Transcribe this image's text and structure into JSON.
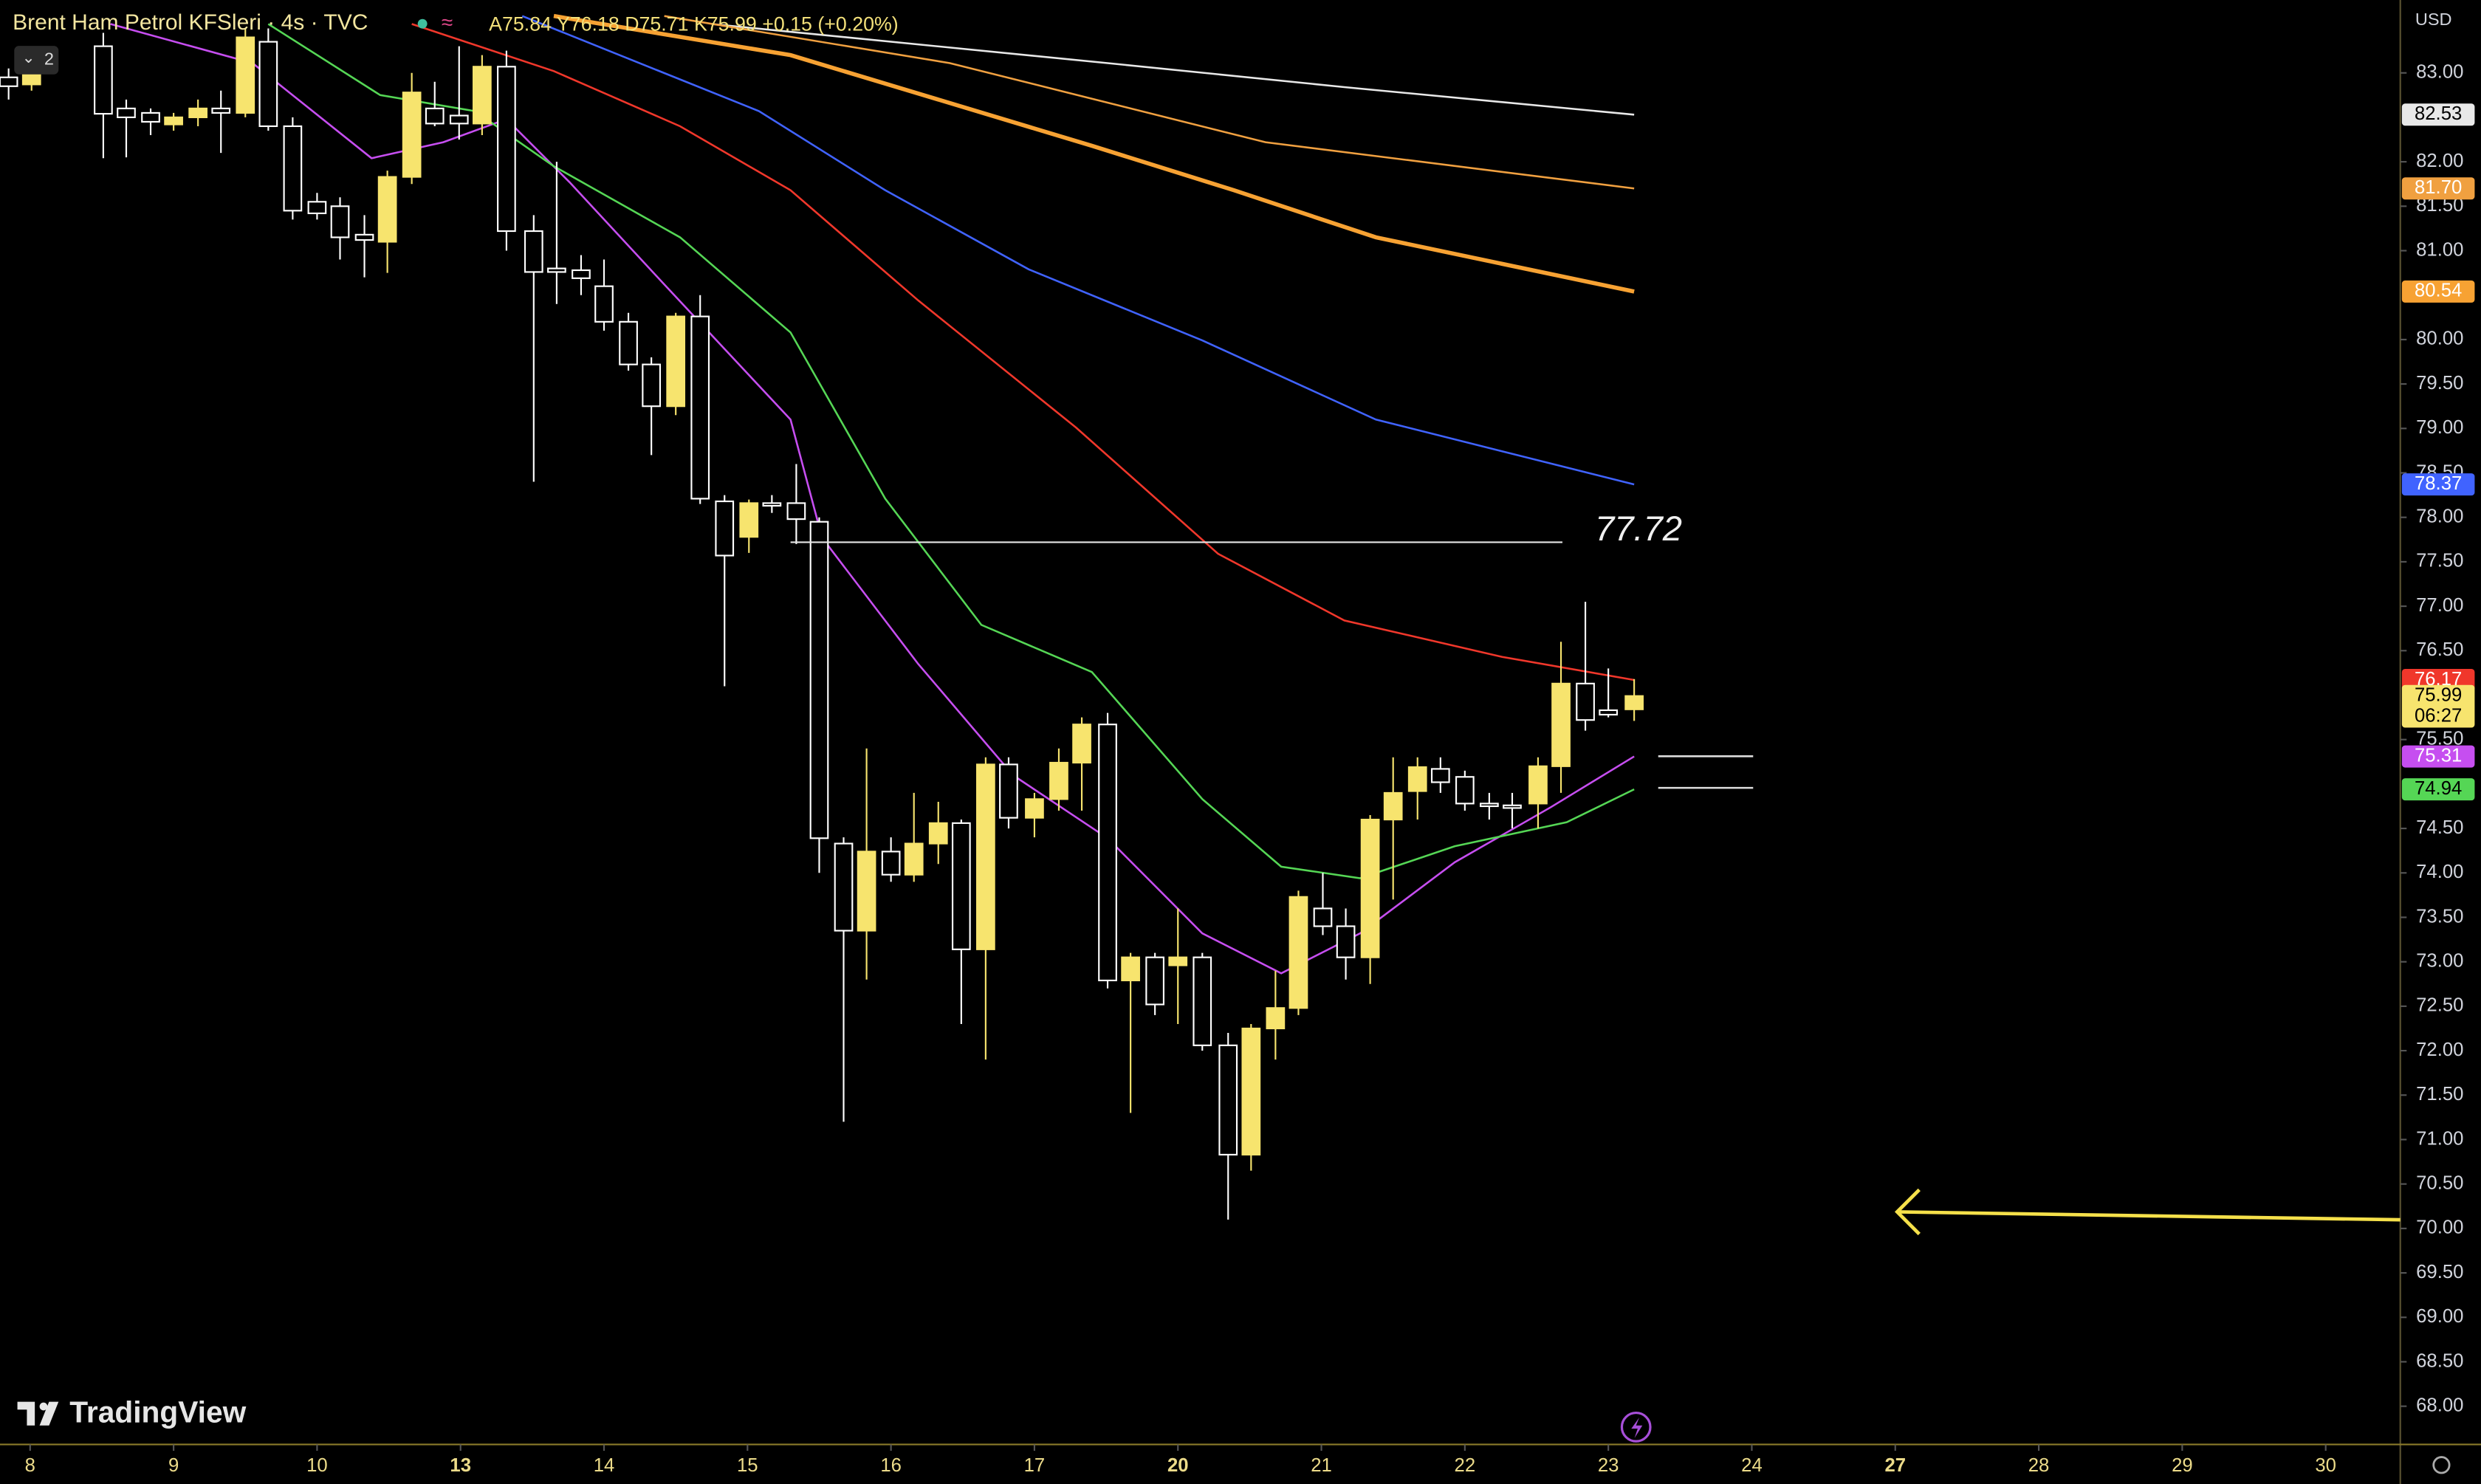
{
  "chart_data": {
    "type": "candlestick",
    "title": "Brent Ham Petrol KFSleri · 4s · TVC",
    "ohlc_legend": "A75.84 Y76.18 D75.71 K75.99 +0.15 (+0.20%)",
    "currency": "USD",
    "badge": "2",
    "watermark": "TradingView",
    "grid": false,
    "up_color": "#f7e46e",
    "down_color": "#ffffff",
    "x": [
      -0.15,
      0.01,
      0.51,
      0.67,
      0.84,
      1.0,
      1.17,
      1.33,
      1.5,
      1.66,
      1.83,
      2.0,
      2.16,
      2.33,
      2.49,
      2.66,
      2.82,
      2.99,
      3.15,
      3.32,
      3.51,
      3.67,
      3.84,
      4.0,
      4.17,
      4.33,
      4.5,
      4.67,
      4.84,
      5.01,
      5.17,
      5.34,
      5.5,
      5.67,
      5.83,
      6.0,
      6.16,
      6.33,
      6.49,
      6.66,
      6.82,
      7.0,
      7.17,
      7.33,
      7.51,
      7.67,
      7.84,
      8.0,
      8.17,
      8.35,
      8.51,
      8.68,
      8.84,
      9.01,
      9.17,
      9.34,
      9.5,
      9.67,
      9.83,
      10.0,
      10.17,
      10.33,
      10.51,
      10.67,
      10.84,
      11.0,
      11.18
    ],
    "open": [
      82.95,
      82.87,
      83.3,
      82.6,
      82.55,
      82.42,
      82.5,
      82.6,
      82.55,
      83.35,
      82.4,
      81.55,
      81.5,
      81.18,
      81.1,
      81.83,
      82.6,
      82.52,
      82.43,
      83.07,
      81.22,
      80.8,
      80.78,
      80.6,
      80.2,
      79.72,
      79.25,
      80.26,
      78.18,
      77.78,
      78.16,
      78.16,
      77.95,
      74.33,
      73.35,
      74.24,
      73.98,
      74.33,
      74.56,
      73.14,
      75.22,
      74.62,
      74.83,
      75.24,
      75.67,
      72.79,
      73.05,
      72.96,
      73.05,
      72.06,
      70.83,
      72.25,
      72.48,
      73.6,
      73.4,
      73.05,
      74.6,
      74.92,
      75.17,
      75.08,
      74.78,
      74.76,
      74.78,
      75.2,
      76.13,
      75.83,
      75.84
    ],
    "high": [
      83.05,
      83.3,
      83.45,
      82.7,
      82.6,
      82.55,
      82.7,
      82.8,
      83.5,
      83.5,
      82.5,
      81.65,
      81.6,
      81.4,
      81.9,
      83.0,
      82.9,
      83.3,
      83.2,
      83.25,
      81.4,
      82.0,
      80.95,
      80.9,
      80.3,
      79.8,
      80.3,
      80.5,
      78.25,
      78.2,
      78.25,
      78.6,
      78.0,
      74.4,
      75.4,
      74.4,
      74.9,
      74.8,
      74.6,
      75.3,
      75.3,
      74.9,
      75.4,
      75.75,
      75.8,
      73.1,
      73.1,
      73.6,
      73.1,
      72.2,
      72.3,
      72.9,
      73.8,
      74.0,
      73.6,
      74.65,
      75.3,
      75.3,
      75.3,
      75.15,
      74.9,
      74.9,
      75.3,
      76.6,
      77.05,
      76.3,
      76.18
    ],
    "low": [
      82.7,
      82.8,
      82.04,
      82.05,
      82.3,
      82.35,
      82.4,
      82.1,
      82.5,
      82.35,
      81.35,
      81.35,
      80.9,
      80.7,
      80.75,
      81.75,
      82.4,
      82.25,
      82.3,
      81.0,
      78.4,
      80.4,
      80.5,
      80.1,
      79.65,
      78.7,
      79.15,
      78.15,
      76.1,
      77.6,
      78.05,
      77.7,
      74.0,
      71.2,
      72.8,
      73.9,
      73.9,
      74.1,
      72.3,
      71.9,
      74.5,
      74.4,
      74.7,
      74.7,
      72.7,
      71.3,
      72.4,
      72.3,
      72.0,
      70.1,
      70.65,
      71.9,
      72.4,
      73.3,
      72.8,
      72.75,
      73.7,
      74.6,
      74.9,
      74.7,
      74.6,
      74.5,
      74.5,
      74.9,
      75.6,
      75.75,
      75.71
    ],
    "close": [
      82.85,
      83.04,
      82.54,
      82.5,
      82.45,
      82.5,
      82.6,
      82.55,
      83.4,
      82.4,
      81.45,
      81.42,
      81.15,
      81.12,
      81.83,
      82.78,
      82.43,
      82.43,
      83.07,
      81.22,
      80.76,
      80.76,
      80.69,
      80.2,
      79.72,
      79.25,
      80.26,
      78.21,
      77.57,
      78.16,
      78.13,
      77.98,
      74.39,
      73.35,
      74.24,
      73.98,
      74.33,
      74.56,
      73.14,
      75.22,
      74.62,
      74.83,
      75.24,
      75.67,
      72.79,
      73.05,
      72.52,
      73.05,
      72.06,
      70.83,
      72.25,
      72.48,
      73.73,
      73.4,
      73.05,
      74.6,
      74.9,
      75.19,
      75.02,
      74.78,
      74.75,
      74.73,
      75.2,
      76.13,
      75.72,
      75.78,
      75.99
    ],
    "lines": [
      {
        "color": "#e8e8e8",
        "width": 1.2,
        "label": "82.53",
        "x": [
          4.75,
          7.51,
          9.16,
          11.18
        ],
        "values": [
          83.55,
          83.11,
          82.84,
          82.53
        ]
      },
      {
        "color": "#f0a040",
        "width": 1.2,
        "label": "81.70",
        "x": [
          4.42,
          6.41,
          8.61,
          11.18
        ],
        "values": [
          83.64,
          83.11,
          82.22,
          81.7
        ]
      },
      {
        "color": "#f7a233",
        "width": 2.6,
        "label": "80.54",
        "x": [
          3.65,
          5.3,
          7.4,
          8.39,
          9.38,
          11.18
        ],
        "values": [
          83.64,
          83.2,
          82.18,
          81.68,
          81.15,
          80.54
        ]
      },
      {
        "color": "#4063ff",
        "width": 1.2,
        "label": "78.37",
        "x": [
          3.43,
          5.08,
          5.96,
          6.96,
          8.17,
          9.38,
          11.18
        ],
        "values": [
          83.64,
          82.57,
          81.68,
          80.79,
          79.99,
          79.1,
          78.37
        ]
      },
      {
        "color": "#f0372b",
        "width": 1.2,
        "label": "76.17",
        "x": [
          2.66,
          3.65,
          4.53,
          5.3,
          6.19,
          7.29,
          8.28,
          9.16,
          10.26,
          11.18
        ],
        "values": [
          83.55,
          83.02,
          82.4,
          81.68,
          80.44,
          79.01,
          77.59,
          76.84,
          76.43,
          76.17
        ]
      },
      {
        "color": "#c64ef0",
        "width": 1.2,
        "label": "75.31",
        "x": [
          0.56,
          1.55,
          2.38,
          2.88,
          3.32,
          3.76,
          4.42,
          5.3,
          5.52,
          6.19,
          6.85,
          7.51,
          8.17,
          8.72,
          9.27,
          9.93,
          10.6,
          11.18
        ],
        "values": [
          83.55,
          83.11,
          82.04,
          82.22,
          82.48,
          81.77,
          80.62,
          79.1,
          77.77,
          76.35,
          75.1,
          74.39,
          73.32,
          72.87,
          73.32,
          74.12,
          74.74,
          75.31
        ]
      },
      {
        "color": "#55d655",
        "width": 1.2,
        "label": "74.94",
        "x": [
          1.66,
          2.44,
          3.1,
          3.65,
          4.53,
          5.3,
          5.96,
          6.63,
          7.4,
          8.17,
          8.72,
          9.27,
          9.93,
          10.71,
          11.18
        ],
        "values": [
          83.55,
          82.75,
          82.57,
          81.95,
          81.15,
          80.08,
          78.21,
          76.79,
          76.26,
          74.83,
          74.07,
          73.94,
          74.3,
          74.57,
          74.94
        ]
      }
    ],
    "hline": {
      "value": 77.72
    },
    "price_tag": {
      "value": 75.99,
      "label": "75.99",
      "countdown": "06:27"
    },
    "xlim": [
      -0.21,
      16.52
    ],
    "xticks": [
      {
        "value": 0,
        "label": "8"
      },
      {
        "value": 1,
        "label": "9"
      },
      {
        "value": 2,
        "label": "10"
      },
      {
        "value": 3,
        "label": "13"
      },
      {
        "value": 4,
        "label": "14"
      },
      {
        "value": 5,
        "label": "15"
      },
      {
        "value": 6,
        "label": "16"
      },
      {
        "value": 7,
        "label": "17"
      },
      {
        "value": 8,
        "label": "20"
      },
      {
        "value": 9,
        "label": "21"
      },
      {
        "value": 10,
        "label": "22"
      },
      {
        "value": 11,
        "label": "23"
      },
      {
        "value": 12,
        "label": "24"
      },
      {
        "value": 13,
        "label": "27"
      },
      {
        "value": 14,
        "label": "28"
      },
      {
        "value": 15,
        "label": "29"
      },
      {
        "value": 16,
        "label": "30"
      }
    ],
    "ylim": [
      67.57,
      83.82
    ],
    "yticks": [
      {
        "value": 83,
        "label": "83.00"
      },
      {
        "value": 82,
        "label": "82.00"
      },
      {
        "value": 81.5,
        "label": "81.50"
      },
      {
        "value": 81,
        "label": "81.00"
      },
      {
        "value": 80,
        "label": "80.00"
      },
      {
        "value": 79.5,
        "label": "79.50"
      },
      {
        "value": 79,
        "label": "79.00"
      },
      {
        "value": 78.5,
        "label": "78.50"
      },
      {
        "value": 78,
        "label": "78.00"
      },
      {
        "value": 77.5,
        "label": "77.50"
      },
      {
        "value": 77,
        "label": "77.00"
      },
      {
        "value": 76.5,
        "label": "76.50"
      },
      {
        "value": 75.5,
        "label": "75.50"
      },
      {
        "value": 74.5,
        "label": "74.50"
      },
      {
        "value": 74,
        "label": "74.00"
      },
      {
        "value": 73.5,
        "label": "73.50"
      },
      {
        "value": 73,
        "label": "73.00"
      },
      {
        "value": 72.5,
        "label": "72.50"
      },
      {
        "value": 72,
        "label": "72.00"
      },
      {
        "value": 71.5,
        "label": "71.50"
      },
      {
        "value": 71,
        "label": "71.00"
      },
      {
        "value": 70.5,
        "label": "70.50"
      },
      {
        "value": 70,
        "label": "70.00"
      },
      {
        "value": 69.5,
        "label": "69.50"
      },
      {
        "value": 69,
        "label": "69.00"
      },
      {
        "value": 68.5,
        "label": "68.50"
      },
      {
        "value": 68,
        "label": "68.00"
      }
    ]
  }
}
